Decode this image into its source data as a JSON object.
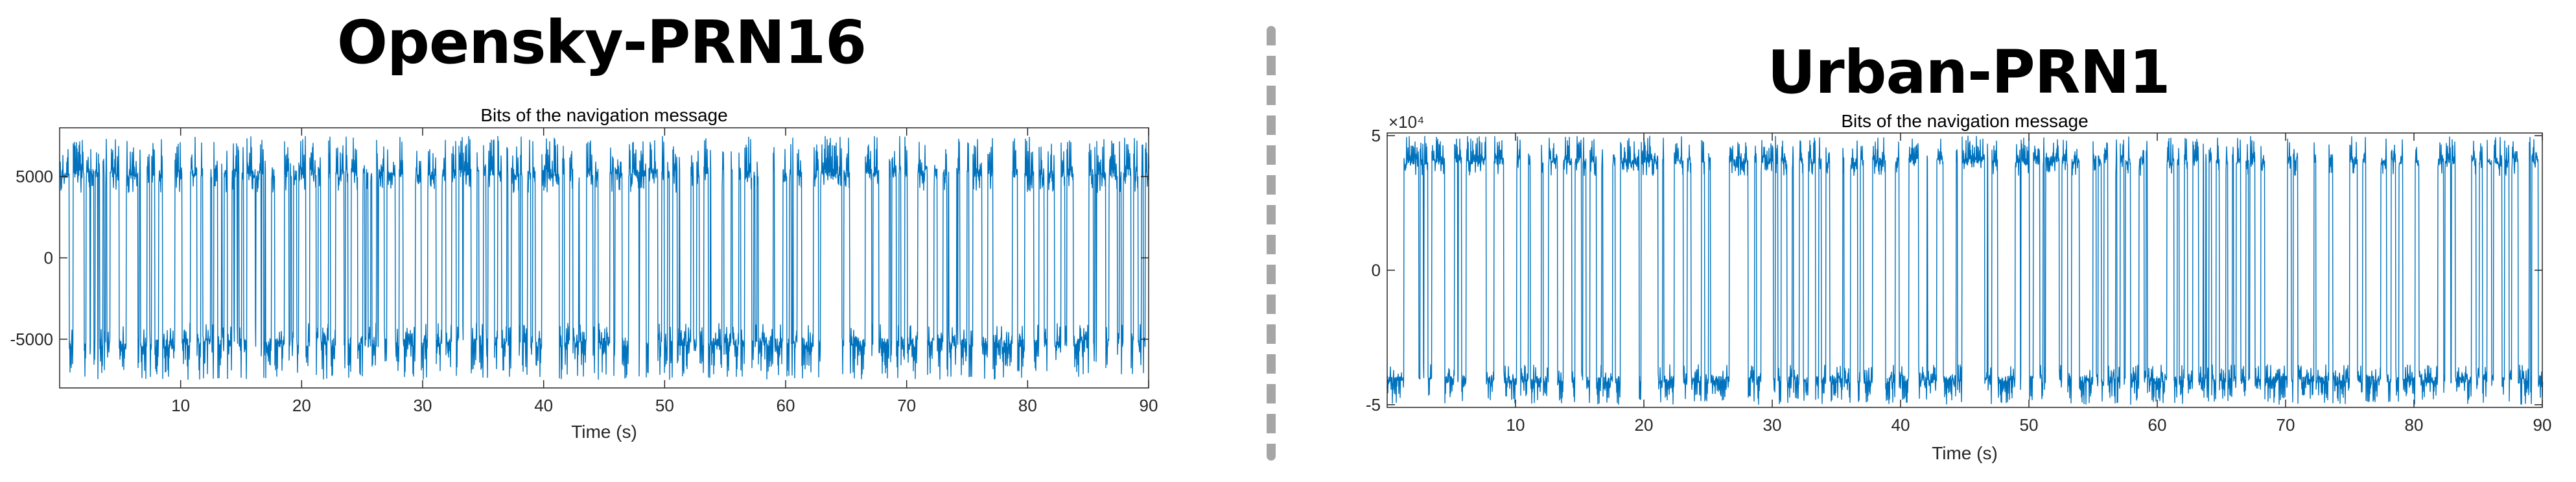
{
  "panels": {
    "left": {
      "heading": "Opensky-PRN16"
    },
    "right": {
      "heading": "Urban-PRN1"
    }
  },
  "chart_data": [
    {
      "type": "line",
      "title": "Bits of the navigation message",
      "xlabel": "Time (s)",
      "ylabel": "",
      "xlim": [
        0,
        90
      ],
      "ylim": [
        -8000,
        8000
      ],
      "xticks": [
        10,
        20,
        30,
        40,
        50,
        60,
        70,
        80,
        90
      ],
      "yticks": [
        -5000,
        0,
        5000
      ],
      "ytick_labels": [
        "-5000",
        "0",
        "5000"
      ],
      "grid": false,
      "color": "#0072bd",
      "series": [
        {
          "description": "BPSK navigation-bit signal alternating between about +5500 and -5500 with noise",
          "levels": [
            5500,
            -5500
          ],
          "noise_band": [
            4000,
            7500
          ],
          "x_range": [
            0,
            90
          ]
        }
      ]
    },
    {
      "type": "line",
      "title": "Bits of the navigation message",
      "xlabel": "Time (s)",
      "ylabel": "",
      "xlim": [
        0,
        90
      ],
      "ylim": [
        -51000,
        51000
      ],
      "xticks": [
        10,
        20,
        30,
        40,
        50,
        60,
        70,
        80,
        90
      ],
      "yticks": [
        -50000,
        0,
        50000
      ],
      "ytick_labels": [
        "-5",
        "0",
        "5"
      ],
      "exponent_label": "×10⁴",
      "grid": false,
      "color": "#0072bd",
      "series": [
        {
          "description": "BPSK navigation-bit signal alternating between about +42000 and -42000 with noise",
          "levels": [
            42000,
            -42000
          ],
          "noise_band": [
            35000,
            50000
          ],
          "x_range": [
            0,
            90
          ]
        }
      ]
    }
  ]
}
